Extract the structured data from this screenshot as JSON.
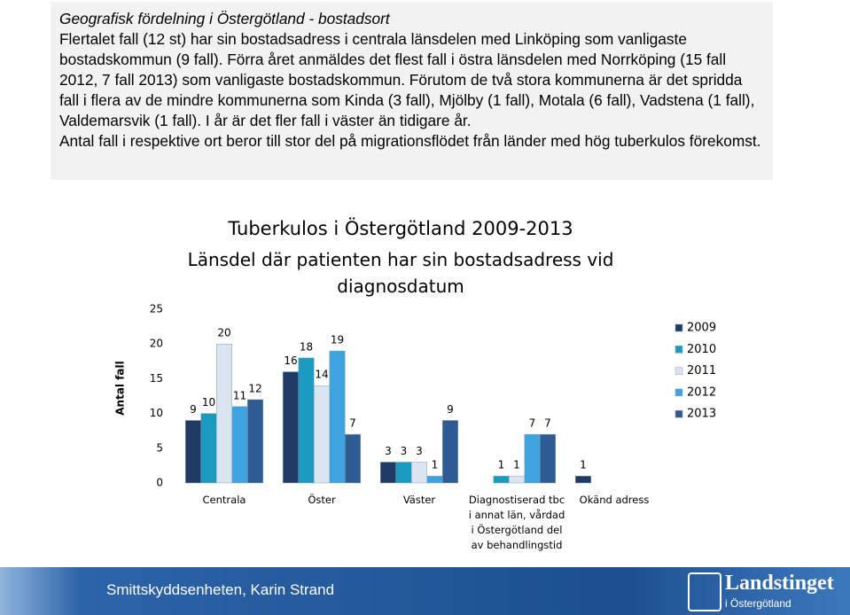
{
  "header": {
    "title": "Geografisk fördelning i Östergötland - bostadsort",
    "paragraphs": [
      "Flertalet fall (12 st) har sin bostadsadress i centrala länsdelen med Linköping som vanligaste bostadskommun (9 fall). Förra året anmäldes det flest fall i östra länsdelen med Norrköping (15 fall 2012, 7 fall 2013) som vanligaste bostadskommun. Förutom de två stora kommunerna är det spridda fall i flera av de mindre kommunerna som Kinda (3 fall), Mjölby (1 fall), Motala (6 fall), Vadstena (1 fall), Valdemarsvik (1 fall). I år är det fler fall i väster än tidigare år.",
      "Antal fall i respektive ort  beror till stor del på migrationsflödet från länder med hög tuberkulos förekomst."
    ]
  },
  "chart_data": {
    "type": "bar",
    "title": "Tuberkulos i Östergötland 2009-2013",
    "subtitle": "Länsdel där patienten har sin bostadsadress vid diagnosdatum",
    "y_label": "Antal fall",
    "categories": [
      "Centrala",
      "Öster",
      "Väster",
      "Diagnostiserad tbc i annat län, vårdad i Östergötland del av behandlingstid",
      "Okänd adress"
    ],
    "series": [
      {
        "name": "2009",
        "color": "#1f3b63",
        "values": [
          9,
          16,
          3,
          null,
          1
        ]
      },
      {
        "name": "2010",
        "color": "#1a9bbf",
        "values": [
          10,
          18,
          3,
          1,
          null
        ]
      },
      {
        "name": "2011",
        "color": "#dbe5f1",
        "values": [
          20,
          14,
          3,
          1,
          null
        ]
      },
      {
        "name": "2012",
        "color": "#3fa3e0",
        "values": [
          11,
          19,
          1,
          7,
          null
        ]
      },
      {
        "name": "2013",
        "color": "#2e5b94",
        "values": [
          12,
          7,
          9,
          7,
          null
        ]
      }
    ],
    "ylim": [
      0,
      25
    ],
    "yticks": [
      0,
      5,
      10,
      15,
      20,
      25
    ],
    "legend": "right"
  },
  "footer": {
    "text": "Smittskyddsenheten, Karin Strand",
    "logo_main": "Landstinget",
    "logo_sub": "i Östergötland"
  }
}
